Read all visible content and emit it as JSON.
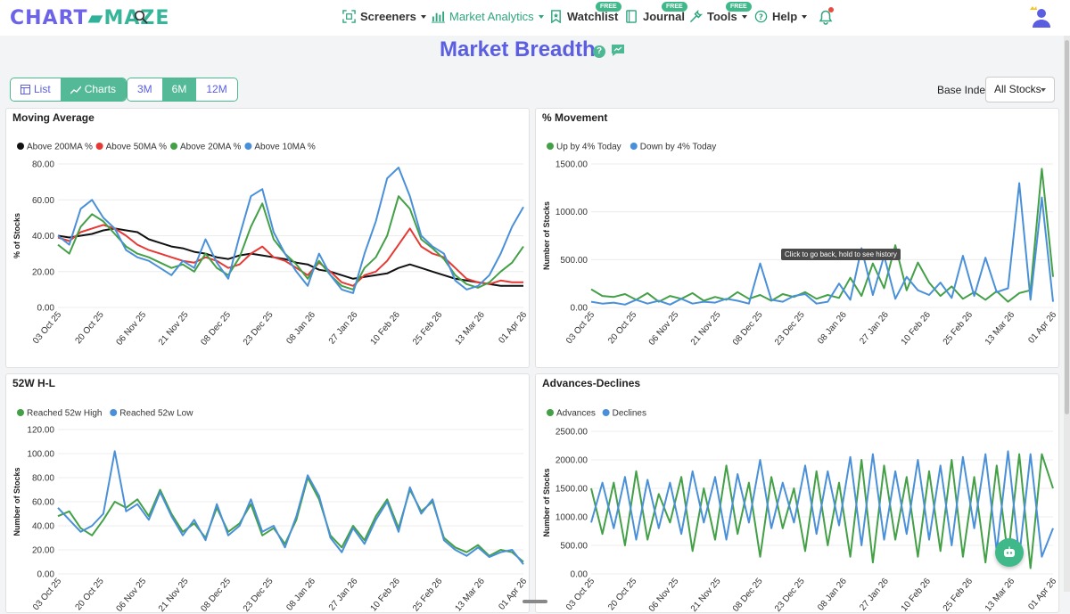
{
  "header": {
    "logo_left": "CHART",
    "logo_right": "MAZE",
    "nav": [
      {
        "label": "Screeners",
        "icon": "scan-icon",
        "badge": ""
      },
      {
        "label": "Market Analytics",
        "icon": "bar-chart-icon",
        "badge": ""
      },
      {
        "label": "Watchlist",
        "icon": "bookmark-icon",
        "badge": "FREE"
      },
      {
        "label": "Journal",
        "icon": "journal-icon",
        "badge": "FREE"
      },
      {
        "label": "Tools",
        "icon": "tools-icon",
        "badge": "FREE"
      },
      {
        "label": "Help",
        "icon": "help-icon",
        "badge": ""
      }
    ]
  },
  "page": {
    "title": "Market Breadth",
    "help_glyph": "?",
    "view_toggle": {
      "list": "List",
      "charts": "Charts",
      "selected": "Charts"
    },
    "range_toggle": {
      "options": [
        "3M",
        "6M",
        "12M"
      ],
      "selected": "6M"
    },
    "base_index_label": "Base Index",
    "base_index_value": "All Stocks",
    "tooltip": "Click to go back, hold to see history"
  },
  "chart_data": [
    {
      "type": "line",
      "title": "Moving Average",
      "ylabel": "% of Stocks",
      "ylim": [
        0,
        80
      ],
      "yticks": [
        "80.00",
        "60.00",
        "40.00",
        "20.00",
        "0.00"
      ],
      "xticks": [
        "03 Oct 25",
        "20 Oct 25",
        "06 Nov 25",
        "21 Nov 25",
        "08 Dec 25",
        "23 Dec 25",
        "08 Jan 26",
        "27 Jan 26",
        "10 Feb 26",
        "25 Feb 26",
        "13 Mar 26",
        "01 Apr 26"
      ],
      "legend": "top-left",
      "series": [
        {
          "name": "Above 200MA %",
          "color": "#111111",
          "values": [
            40,
            39,
            40,
            41,
            43,
            44,
            43,
            42,
            38,
            36,
            34,
            33,
            31,
            30,
            28,
            27,
            29,
            30,
            29,
            28,
            27,
            25,
            24,
            21,
            20,
            18,
            16,
            17,
            18,
            19,
            22,
            24,
            22,
            20,
            18,
            16,
            15,
            14,
            13,
            12,
            12,
            12
          ]
        },
        {
          "name": "Above 50MA %",
          "color": "#e53935",
          "values": [
            39,
            37,
            42,
            44,
            46,
            44,
            40,
            35,
            32,
            30,
            28,
            26,
            25,
            28,
            26,
            22,
            24,
            30,
            34,
            28,
            26,
            22,
            18,
            25,
            20,
            14,
            12,
            18,
            20,
            26,
            35,
            44,
            34,
            30,
            28,
            22,
            16,
            14,
            13,
            15,
            14,
            14
          ]
        },
        {
          "name": "Above 20MA %",
          "color": "#43a047",
          "values": [
            35,
            30,
            45,
            52,
            48,
            41,
            34,
            30,
            28,
            25,
            22,
            24,
            20,
            30,
            22,
            18,
            28,
            45,
            58,
            38,
            30,
            24,
            16,
            26,
            18,
            12,
            10,
            22,
            28,
            40,
            62,
            55,
            38,
            33,
            27,
            18,
            13,
            11,
            14,
            20,
            25,
            34
          ]
        },
        {
          "name": "Above 10MA %",
          "color": "#4a90d9",
          "values": [
            40,
            35,
            55,
            60,
            50,
            44,
            32,
            28,
            26,
            22,
            18,
            26,
            22,
            38,
            25,
            16,
            40,
            62,
            66,
            42,
            30,
            20,
            12,
            30,
            18,
            10,
            8,
            30,
            48,
            72,
            78,
            62,
            40,
            34,
            30,
            15,
            10,
            12,
            18,
            30,
            45,
            56
          ]
        }
      ]
    },
    {
      "type": "line",
      "title": "% Movement",
      "ylabel": "Number of Stocks",
      "ylim": [
        0,
        1500
      ],
      "yticks": [
        "1500.00",
        "1000.00",
        "500.00",
        "0.00"
      ],
      "xticks": [
        "03 Oct 25",
        "20 Oct 25",
        "06 Nov 25",
        "21 Nov 25",
        "08 Dec 25",
        "23 Dec 25",
        "08 Jan 26",
        "27 Jan 26",
        "10 Feb 26",
        "25 Feb 26",
        "13 Mar 26",
        "01 Apr 26"
      ],
      "legend": "top-left",
      "series": [
        {
          "name": "Up by 4% Today",
          "color": "#43a047",
          "values": [
            190,
            120,
            110,
            140,
            80,
            150,
            60,
            120,
            90,
            150,
            70,
            110,
            80,
            160,
            90,
            130,
            70,
            140,
            110,
            160,
            90,
            130,
            100,
            310,
            120,
            460,
            200,
            650,
            180,
            470,
            260,
            120,
            220,
            90,
            160,
            80,
            170,
            60,
            150,
            180,
            1450,
            320
          ]
        },
        {
          "name": "Down by 4% Today",
          "color": "#4a90d9",
          "values": [
            60,
            40,
            50,
            30,
            80,
            40,
            70,
            30,
            90,
            40,
            60,
            50,
            90,
            70,
            40,
            460,
            80,
            60,
            120,
            140,
            40,
            60,
            250,
            80,
            620,
            130,
            540,
            90,
            320,
            180,
            130,
            260,
            100,
            540,
            120,
            520,
            160,
            200,
            1300,
            80,
            1150,
            60
          ]
        }
      ]
    },
    {
      "type": "line",
      "title": "52W H-L",
      "ylabel": "Number of Stocks",
      "ylim": [
        0,
        120
      ],
      "yticks": [
        "120.00",
        "100.00",
        "80.00",
        "60.00",
        "40.00",
        "20.00",
        "0.00"
      ],
      "xticks": [
        "03 Oct 25",
        "20 Oct 25",
        "06 Nov 25",
        "21 Nov 25",
        "08 Dec 25",
        "23 Dec 25",
        "08 Jan 26",
        "27 Jan 26",
        "10 Feb 26",
        "25 Feb 26",
        "13 Mar 26",
        "01 Apr 26"
      ],
      "legend": "top-left",
      "series": [
        {
          "name": "Reached 52w High",
          "color": "#43a047",
          "values": [
            48,
            52,
            38,
            32,
            45,
            60,
            55,
            62,
            48,
            70,
            50,
            35,
            42,
            30,
            55,
            35,
            42,
            58,
            32,
            38,
            25,
            45,
            80,
            62,
            32,
            22,
            40,
            28,
            48,
            62,
            38,
            70,
            52,
            60,
            30,
            22,
            18,
            24,
            15,
            20,
            18,
            10
          ]
        },
        {
          "name": "Reached 52w Low",
          "color": "#4a90d9",
          "values": [
            55,
            45,
            35,
            40,
            50,
            102,
            52,
            58,
            45,
            68,
            48,
            32,
            45,
            28,
            58,
            32,
            40,
            62,
            35,
            40,
            22,
            48,
            82,
            65,
            30,
            18,
            38,
            25,
            45,
            60,
            35,
            72,
            50,
            62,
            28,
            20,
            15,
            22,
            14,
            18,
            20,
            8
          ]
        }
      ]
    },
    {
      "type": "line",
      "title": "Advances-Declines",
      "ylabel": "Number of Stocks",
      "ylim": [
        0,
        2500
      ],
      "yticks": [
        "2500.00",
        "2000.00",
        "1500.00",
        "1000.00",
        "500.00",
        "0.00"
      ],
      "xticks": [
        "03 Oct 25",
        "20 Oct 25",
        "06 Nov 25",
        "21 Nov 25",
        "08 Dec 25",
        "23 Dec 25",
        "08 Jan 26",
        "27 Jan 26",
        "10 Feb 26",
        "25 Feb 26",
        "13 Mar 26",
        "01 Apr 26"
      ],
      "legend": "top-left",
      "series": [
        {
          "name": "Advances",
          "color": "#43a047",
          "values": [
            1500,
            700,
            1600,
            500,
            1800,
            600,
            1400,
            900,
            1700,
            400,
            1500,
            600,
            1900,
            700,
            1600,
            300,
            1700,
            800,
            1500,
            400,
            1800,
            500,
            1600,
            300,
            2000,
            200,
            1900,
            600,
            1700,
            300,
            1800,
            400,
            2000,
            300,
            1700,
            200,
            1900,
            300,
            2100,
            100,
            2100,
            1500
          ]
        },
        {
          "name": "Declines",
          "color": "#4a90d9",
          "values": [
            900,
            1600,
            800,
            1700,
            600,
            1650,
            800,
            1600,
            700,
            1800,
            900,
            1700,
            600,
            1750,
            900,
            2000,
            800,
            1600,
            900,
            1900,
            700,
            1800,
            850,
            2050,
            500,
            2100,
            600,
            1800,
            700,
            2000,
            600,
            1900,
            500,
            2050,
            800,
            2100,
            400,
            2150,
            300,
            2100,
            300,
            800
          ]
        }
      ]
    }
  ]
}
